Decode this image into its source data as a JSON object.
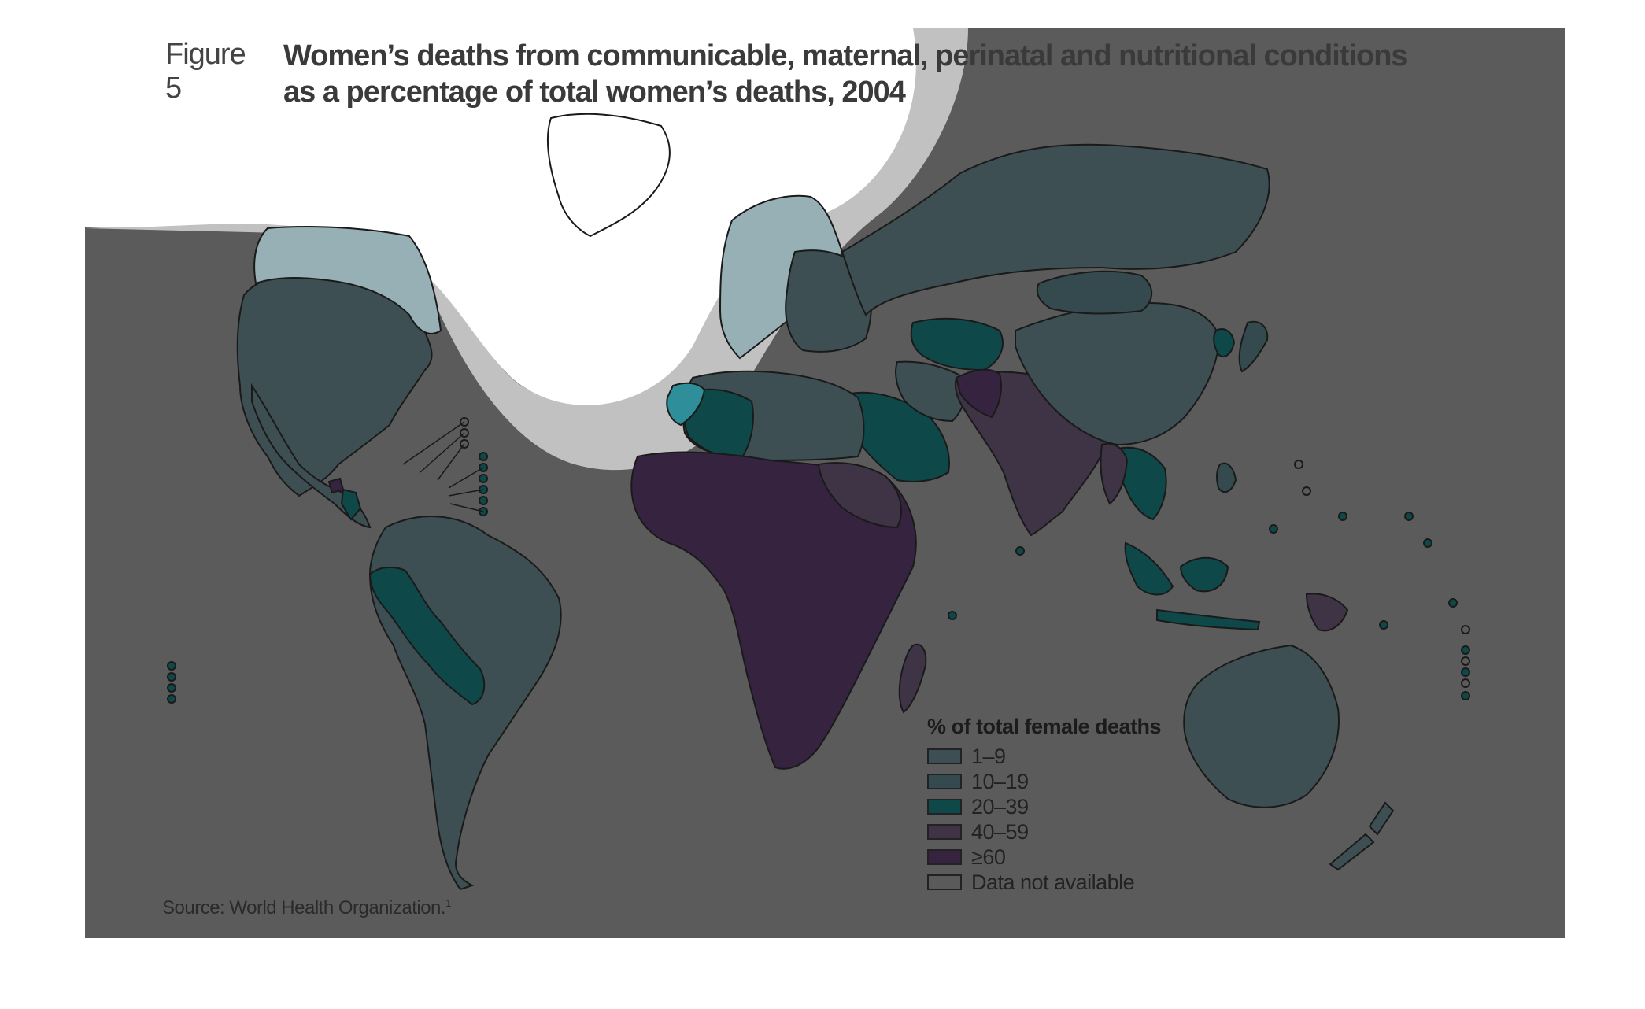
{
  "figure": {
    "label": "Figure 5",
    "title_line1": "Women’s deaths from communicable, maternal, perinatal and nutritional conditions",
    "title_line2": "as a percentage of total women’s deaths, 2004"
  },
  "legend": {
    "title": "% of total female deaths",
    "items": [
      {
        "label": "1–9",
        "color": "#3e4f54"
      },
      {
        "label": "10–19",
        "color": "#354a4e"
      },
      {
        "label": "20–39",
        "color": "#0e4849"
      },
      {
        "label": "40–59",
        "color": "#3f3346"
      },
      {
        "label": "≥60",
        "color": "#36233f"
      },
      {
        "label": "Data not available",
        "color": "#5a5a5a"
      }
    ]
  },
  "source": {
    "text": "Source: World Health Organization.",
    "note": "1"
  },
  "colors": {
    "ocean": "#5b5b5b",
    "highlight_band": "#c1c1c1",
    "highlight_core": "#ffffff",
    "highlight_land": "#97b0b6",
    "highlight_band_accent": "#2e8f9a"
  }
}
